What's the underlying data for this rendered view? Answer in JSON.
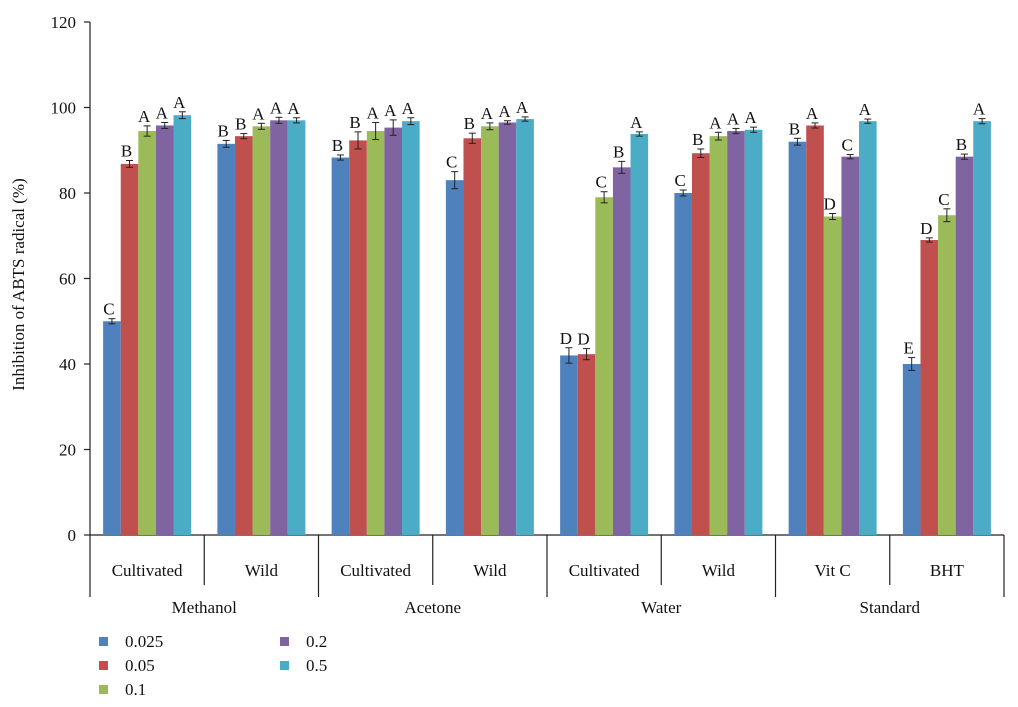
{
  "chart_data": {
    "type": "bar",
    "ylabel": "Inhibition of ABTS radical (%)",
    "xlabel": "",
    "ylim": [
      0,
      120
    ],
    "yticks": [
      0,
      20,
      40,
      60,
      80,
      100,
      120
    ],
    "grid": false,
    "legend_position": "bottom-left",
    "categories": [
      "Cultivated",
      "Wild",
      "Cultivated",
      "Wild",
      "Cultivated",
      "Wild",
      "Vit C",
      "BHT"
    ],
    "groups": [
      {
        "label": "Methanol",
        "span": [
          0,
          1
        ]
      },
      {
        "label": "Acetone",
        "span": [
          2,
          3
        ]
      },
      {
        "label": "Water",
        "span": [
          4,
          5
        ]
      },
      {
        "label": "Standard",
        "span": [
          6,
          7
        ]
      }
    ],
    "series": [
      {
        "name": "0.025",
        "color": "#4f81bd",
        "values": [
          50,
          91.5,
          88.3,
          83,
          42,
          80,
          92,
          40
        ],
        "errors": [
          0.6,
          0.8,
          0.6,
          2,
          1.8,
          0.7,
          0.8,
          1.5
        ],
        "letters": [
          "C",
          "B",
          "B",
          "C",
          "D",
          "C",
          "B",
          "E"
        ]
      },
      {
        "name": "0.05",
        "color": "#c0504d",
        "values": [
          86.8,
          93.3,
          92.3,
          92.8,
          42.3,
          89.3,
          95.8,
          69
        ],
        "errors": [
          0.8,
          0.6,
          2,
          1.2,
          1.3,
          1,
          0.6,
          0.5
        ],
        "letters": [
          "B",
          "B",
          "B",
          "B",
          "D",
          "B",
          "A",
          "D"
        ]
      },
      {
        "name": "0.1",
        "color": "#9bbb59",
        "values": [
          94.5,
          95.6,
          94.5,
          95.6,
          79,
          93.3,
          74.5,
          74.8
        ],
        "errors": [
          1.2,
          0.7,
          2,
          0.8,
          1.3,
          0.9,
          0.7,
          1.5
        ],
        "letters": [
          "A",
          "A",
          "A",
          "A",
          "C",
          "A",
          "D",
          "C"
        ]
      },
      {
        "name": "0.2",
        "color": "#8064a2",
        "values": [
          95.8,
          97,
          95.3,
          96.5,
          86,
          94.5,
          88.5,
          88.5
        ],
        "errors": [
          0.7,
          0.7,
          1.8,
          0.4,
          1.4,
          0.6,
          0.5,
          0.6
        ],
        "letters": [
          "A",
          "A",
          "A",
          "A",
          "B",
          "A",
          "C",
          "B"
        ]
      },
      {
        "name": "0.5",
        "color": "#4bacc6",
        "values": [
          98.2,
          97,
          96.8,
          97.3,
          93.8,
          94.8,
          96.8,
          96.8
        ],
        "errors": [
          0.8,
          0.6,
          0.8,
          0.5,
          0.5,
          0.6,
          0.5,
          0.6
        ],
        "letters": [
          "A",
          "A",
          "A",
          "A",
          "A",
          "A",
          "A",
          "A"
        ]
      }
    ]
  }
}
